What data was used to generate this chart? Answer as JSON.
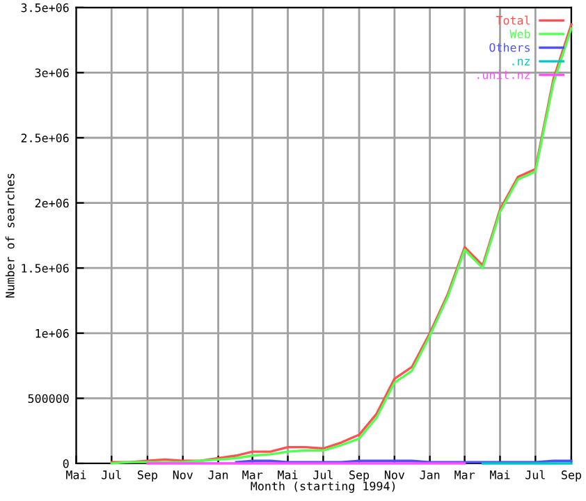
{
  "chart_data": {
    "type": "line",
    "xlabel": "Month (starting 1994)",
    "ylabel": "Number of searches",
    "x": [
      "1994-07",
      "1994-08",
      "1994-09",
      "1994-10",
      "1994-11",
      "1994-12",
      "1995-01",
      "1995-02",
      "1995-03",
      "1995-04",
      "1995-05",
      "1995-06",
      "1995-07",
      "1995-08",
      "1995-09",
      "1995-10",
      "1995-11",
      "1995-12",
      "1996-01",
      "1996-02",
      "1996-03",
      "1996-04",
      "1996-05",
      "1996-06",
      "1996-07",
      "1996-08",
      "1996-09"
    ],
    "series": [
      {
        "name": "Total",
        "color": "#ff5050",
        "values": [
          10000,
          10000,
          20000,
          30000,
          20000,
          20000,
          40000,
          60000,
          90000,
          90000,
          125000,
          125000,
          115000,
          160000,
          220000,
          380000,
          650000,
          740000,
          1000000,
          1300000,
          1660000,
          1520000,
          1950000,
          2200000,
          2260000,
          2950000,
          3370000
        ]
      },
      {
        "name": "Web",
        "color": "#50ff50",
        "values": [
          0,
          10000,
          10000,
          10000,
          10000,
          20000,
          30000,
          40000,
          60000,
          70000,
          90000,
          100000,
          100000,
          140000,
          190000,
          350000,
          620000,
          710000,
          980000,
          1280000,
          1640000,
          1500000,
          1930000,
          2180000,
          2240000,
          2920000,
          3340000
        ]
      },
      {
        "name": "Others",
        "color": "#5050ff",
        "values": [
          null,
          null,
          null,
          null,
          null,
          null,
          null,
          10000,
          20000,
          20000,
          10000,
          10000,
          10000,
          10000,
          20000,
          20000,
          20000,
          20000,
          10000,
          10000,
          10000,
          10000,
          10000,
          10000,
          10000,
          20000,
          20000
        ]
      },
      {
        "name": ".nz",
        "color": "#00c8c8",
        "values": [
          null,
          null,
          null,
          null,
          null,
          null,
          null,
          null,
          null,
          null,
          null,
          null,
          null,
          null,
          null,
          null,
          null,
          null,
          null,
          null,
          null,
          0,
          0,
          0,
          0,
          0,
          0
        ]
      },
      {
        "name": ".unit.nz",
        "color": "#ff50ff",
        "values": [
          null,
          null,
          0,
          0,
          0,
          0,
          0,
          0,
          0,
          0,
          0,
          0,
          0,
          0,
          0,
          0,
          0,
          0,
          0,
          0,
          0,
          null,
          null,
          null,
          null,
          null,
          null
        ]
      }
    ],
    "xlim": [
      "1994-05",
      "1996-09"
    ],
    "xticks": [
      {
        "value": "1994-05",
        "label": "Mai"
      },
      {
        "value": "1994-07",
        "label": "Jul"
      },
      {
        "value": "1994-09",
        "label": "Sep"
      },
      {
        "value": "1994-11",
        "label": "Nov"
      },
      {
        "value": "1995-01",
        "label": "Jan"
      },
      {
        "value": "1995-03",
        "label": "Mar"
      },
      {
        "value": "1995-05",
        "label": "Mai"
      },
      {
        "value": "1995-07",
        "label": "Jul"
      },
      {
        "value": "1995-09",
        "label": "Sep"
      },
      {
        "value": "1995-11",
        "label": "Nov"
      },
      {
        "value": "1996-01",
        "label": "Jan"
      },
      {
        "value": "1996-03",
        "label": "Mar"
      },
      {
        "value": "1996-05",
        "label": "Mai"
      },
      {
        "value": "1996-07",
        "label": "Jul"
      },
      {
        "value": "1996-09",
        "label": "Sep"
      }
    ],
    "ylim": [
      0,
      3500000
    ],
    "yticks": [
      0,
      500000,
      {
        "value": 1000000,
        "label": "1e+06"
      },
      {
        "value": 1500000,
        "label": "1.5e+06"
      },
      {
        "value": 2000000,
        "label": "2e+06"
      },
      {
        "value": 2500000,
        "label": "2.5e+06"
      },
      {
        "value": 3000000,
        "label": "3e+06"
      },
      {
        "value": 3500000,
        "label": "3.5e+06"
      }
    ],
    "grid": true,
    "legend": "top right"
  }
}
